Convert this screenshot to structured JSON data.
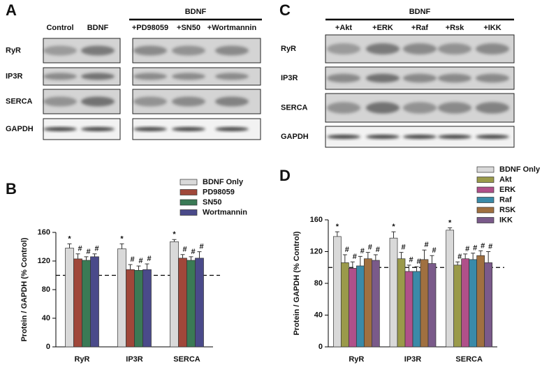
{
  "blot_a": {
    "panel": "A",
    "group_label": "BDNF",
    "lanes": [
      "Control",
      "BDNF",
      "+PD98059",
      "+SN50",
      "+Wortmannin"
    ],
    "rows": [
      "RyR",
      "IP3R",
      "SERCA",
      "GAPDH"
    ]
  },
  "blot_c": {
    "panel": "C",
    "group_label": "BDNF",
    "lanes": [
      "+Akt",
      "+ERK",
      "+Raf",
      "+Rsk",
      "+IKK"
    ],
    "rows": [
      "RyR",
      "IP3R",
      "SERCA",
      "GAPDH"
    ]
  },
  "chart_data": [
    {
      "type": "bar",
      "panel": "B",
      "ylabel": "Protein / GAPDH (% Control)",
      "categories": [
        "RyR",
        "IP3R",
        "SERCA"
      ],
      "ylim": [
        0,
        160
      ],
      "yticks": [
        0,
        40,
        80,
        120,
        160
      ],
      "reference_line": 100,
      "series": [
        {
          "name": "BDNF Only",
          "color": "#d9d9d9",
          "values": [
            138,
            137,
            147
          ],
          "errors": [
            6,
            7,
            3
          ],
          "markers": [
            "*",
            "*",
            "*"
          ]
        },
        {
          "name": "PD98059",
          "color": "#a0473a",
          "values": [
            123,
            108,
            124
          ],
          "errors": [
            7,
            7,
            5
          ],
          "markers": [
            "#",
            "#",
            "#"
          ]
        },
        {
          "name": "SN50",
          "color": "#3a7a55",
          "values": [
            121,
            107,
            121
          ],
          "errors": [
            5,
            6,
            5
          ],
          "markers": [
            "#",
            "#",
            "#"
          ]
        },
        {
          "name": "Wortmannin",
          "color": "#4a4a8a",
          "values": [
            126,
            108,
            124
          ],
          "errors": [
            4,
            8,
            9
          ],
          "markers": [
            "#",
            "#",
            "#"
          ]
        }
      ]
    },
    {
      "type": "bar",
      "panel": "D",
      "ylabel": "Protein / GAPDH (% Control)",
      "categories": [
        "RyR",
        "IP3R",
        "SERCA"
      ],
      "ylim": [
        0,
        160
      ],
      "yticks": [
        0,
        40,
        80,
        120,
        160
      ],
      "reference_line": 100,
      "series": [
        {
          "name": "BDNF Only",
          "color": "#d9d9d9",
          "values": [
            139,
            137,
            147
          ],
          "errors": [
            6,
            8,
            3
          ],
          "markers": [
            "*",
            "*",
            "*"
          ]
        },
        {
          "name": "Akt",
          "color": "#9a9a4a",
          "values": [
            106,
            111,
            103
          ],
          "errors": [
            10,
            8,
            4
          ],
          "markers": [
            "#",
            "#",
            "#"
          ]
        },
        {
          "name": "ERK",
          "color": "#b0508a",
          "values": [
            99,
            95,
            111
          ],
          "errors": [
            8,
            8,
            6
          ],
          "markers": [
            "#",
            "#",
            "#"
          ]
        },
        {
          "name": "Raf",
          "color": "#3a8aa8",
          "values": [
            102,
            95,
            110
          ],
          "errors": [
            12,
            6,
            8
          ],
          "markers": [
            "#",
            "#",
            "#"
          ]
        },
        {
          "name": "RSK",
          "color": "#a07040",
          "values": [
            111,
            110,
            115
          ],
          "errors": [
            8,
            12,
            6
          ],
          "markers": [
            "#",
            "#",
            "#"
          ]
        },
        {
          "name": "IKK",
          "color": "#7a5a8a",
          "values": [
            109,
            105,
            106
          ],
          "errors": [
            7,
            10,
            14
          ],
          "markers": [
            "#",
            "#",
            "#"
          ]
        }
      ]
    }
  ]
}
